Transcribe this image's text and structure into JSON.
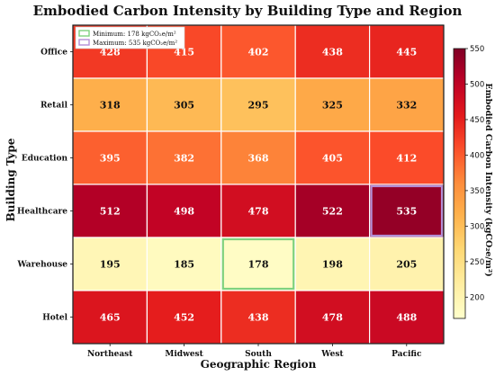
{
  "chart_data": {
    "type": "heatmap",
    "title": "Embodied Carbon Intensity by Building Type and Region",
    "xlabel": "Geographic Region",
    "ylabel": "Building Type",
    "x_categories": [
      "Northeast",
      "Midwest",
      "South",
      "West",
      "Pacific"
    ],
    "y_categories": [
      "Office",
      "Retail",
      "Education",
      "Healthcare",
      "Warehouse",
      "Hotel"
    ],
    "values": [
      [
        428,
        415,
        402,
        438,
        445
      ],
      [
        318,
        305,
        295,
        325,
        332
      ],
      [
        395,
        382,
        368,
        405,
        412
      ],
      [
        512,
        498,
        478,
        522,
        535
      ],
      [
        195,
        185,
        178,
        198,
        205
      ],
      [
        465,
        452,
        438,
        478,
        488
      ]
    ],
    "colorbar": {
      "label": "Embodied Carbon Intensity (kgCO₂e/m²)",
      "range": [
        170,
        550
      ],
      "ticks": [
        200,
        250,
        300,
        350,
        400,
        450,
        500,
        550
      ],
      "colormap": "YlOrRd"
    },
    "highlights": {
      "min": {
        "label": "Minimum: 178 kgCO₂e/m²",
        "row": 4,
        "col": 2,
        "color": "#7fd17f"
      },
      "max": {
        "label": "Maximum: 535 kgCO₂e/m²",
        "row": 3,
        "col": 4,
        "color": "#b38fd6"
      }
    },
    "legend_position": "upper-left"
  }
}
